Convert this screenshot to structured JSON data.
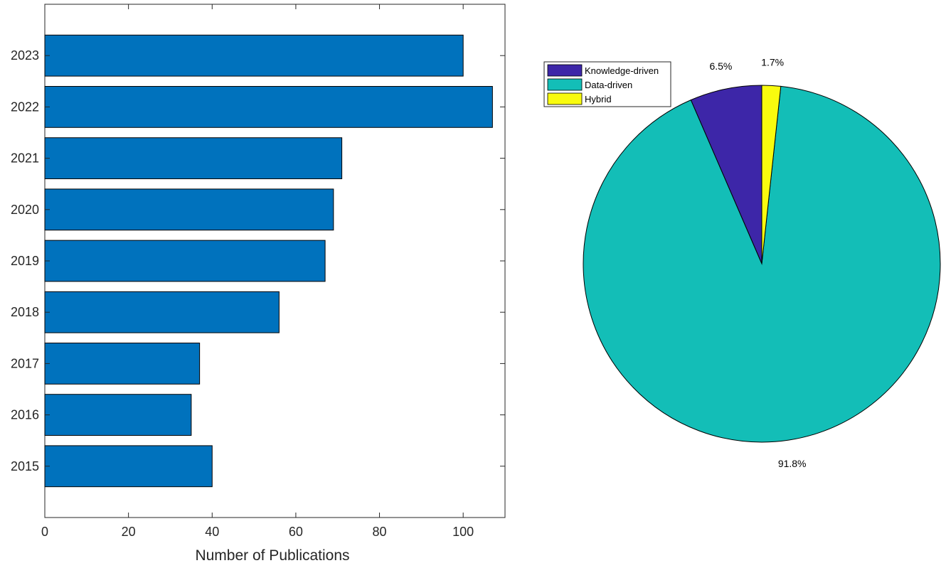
{
  "chart_data": [
    {
      "type": "bar",
      "orientation": "horizontal",
      "categories": [
        "2015",
        "2016",
        "2017",
        "2018",
        "2019",
        "2020",
        "2021",
        "2022",
        "2023"
      ],
      "values": [
        40,
        35,
        37,
        56,
        67,
        69,
        71,
        107,
        100
      ],
      "xlabel": "Number of Publications",
      "ylabel": "",
      "xlim": [
        0,
        110
      ],
      "xticks": [
        "0",
        "20",
        "40",
        "60",
        "80",
        "100"
      ],
      "bar_color": "#0072BD",
      "grid": false
    },
    {
      "type": "pie",
      "legend_position": "top-left",
      "slices": [
        {
          "label": "Knowledge-driven",
          "value": 6.5,
          "text": "6.5%",
          "color": "#3D26A8"
        },
        {
          "label": "Data-driven",
          "value": 91.8,
          "text": "91.8%",
          "color": "#13BEB7"
        },
        {
          "label": "Hybrid",
          "value": 1.7,
          "text": "1.7%",
          "color": "#F9FB0E"
        }
      ]
    }
  ]
}
